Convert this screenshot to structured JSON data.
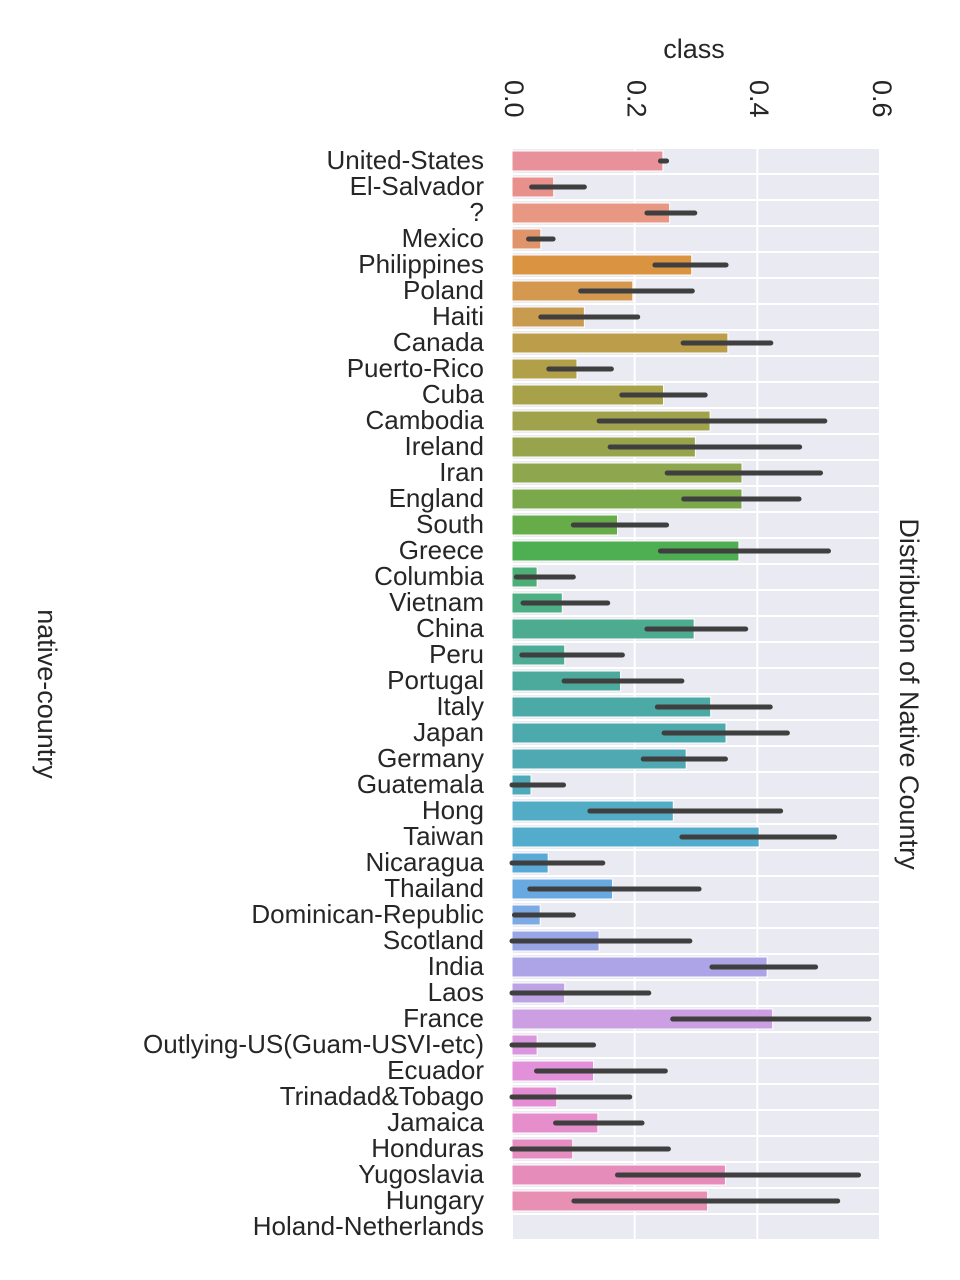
{
  "chart_data": {
    "type": "bar",
    "orientation": "horizontal",
    "title": "Distribution of Native Country",
    "xlabel": "class",
    "ylabel": "native-country",
    "xlim": [
      0,
      0.6
    ],
    "xticks": [
      "0.0",
      "0.2",
      "0.4",
      "0.6"
    ],
    "xtick_values": [
      0,
      0.2,
      0.4,
      0.6
    ],
    "grid": true,
    "x_axis_position": "top",
    "title_position": "right, rotated",
    "background": "#eaeaf2",
    "error_bar_color": "#3f3f3f",
    "categories": [
      "United-States",
      "El-Salvador",
      "?",
      "Mexico",
      "Philippines",
      "Poland",
      "Haiti",
      "Canada",
      "Puerto-Rico",
      "Cuba",
      "Cambodia",
      "Ireland",
      "Iran",
      "England",
      "South",
      "Greece",
      "Columbia",
      "Vietnam",
      "China",
      "Peru",
      "Portugal",
      "Italy",
      "Japan",
      "Germany",
      "Guatemala",
      "Hong",
      "Taiwan",
      "Nicaragua",
      "Thailand",
      "Dominican-Republic",
      "Scotland",
      "India",
      "Laos",
      "France",
      "Outlying-US(Guam-USVI-etc)",
      "Ecuador",
      "Trinadad&Tobago",
      "Jamaica",
      "Honduras",
      "Yugoslavia",
      "Hungary",
      "Holand-Netherlands"
    ],
    "values": [
      0.246,
      0.068,
      0.257,
      0.047,
      0.293,
      0.197,
      0.118,
      0.352,
      0.106,
      0.247,
      0.323,
      0.299,
      0.375,
      0.375,
      0.172,
      0.37,
      0.041,
      0.082,
      0.297,
      0.086,
      0.177,
      0.324,
      0.349,
      0.284,
      0.031,
      0.263,
      0.403,
      0.059,
      0.164,
      0.046,
      0.142,
      0.416,
      0.086,
      0.425,
      0.041,
      0.133,
      0.073,
      0.14,
      0.099,
      0.348,
      0.319,
      0.0
    ],
    "ci_low": [
      0.242,
      0.032,
      0.22,
      0.027,
      0.233,
      0.112,
      0.047,
      0.279,
      0.06,
      0.179,
      0.142,
      0.16,
      0.253,
      0.28,
      0.1,
      0.242,
      0.007,
      0.018,
      0.22,
      0.016,
      0.085,
      0.237,
      0.248,
      0.214,
      0.0,
      0.127,
      0.277,
      0.0,
      0.029,
      0.004,
      0.0,
      0.326,
      0.0,
      0.262,
      0.0,
      0.04,
      0.0,
      0.071,
      0.0,
      0.172,
      0.101,
      0.0
    ],
    "ci_high": [
      0.252,
      0.118,
      0.298,
      0.067,
      0.349,
      0.294,
      0.205,
      0.422,
      0.162,
      0.315,
      0.51,
      0.469,
      0.503,
      0.468,
      0.252,
      0.516,
      0.1,
      0.156,
      0.381,
      0.18,
      0.277,
      0.421,
      0.449,
      0.348,
      0.084,
      0.438,
      0.526,
      0.148,
      0.305,
      0.1,
      0.29,
      0.495,
      0.223,
      0.582,
      0.133,
      0.25,
      0.192,
      0.212,
      0.255,
      0.565,
      0.531,
      0.0
    ],
    "colors": [
      "#e8919a",
      "#e8918c",
      "#e89882",
      "#e0946a",
      "#d99341",
      "#d4984f",
      "#c89b4e",
      "#bc9e4a",
      "#b2a049",
      "#a7a14a",
      "#a0a34b",
      "#98a44c",
      "#8ea64d",
      "#7aa84a",
      "#66ac49",
      "#4eae52",
      "#4eae78",
      "#4eae84",
      "#4dab8f",
      "#4dab96",
      "#4caa9c",
      "#4baaa6",
      "#4caaad",
      "#4ea9b3",
      "#4ea9ba",
      "#52acc6",
      "#54accc",
      "#5aaad8",
      "#67a9e0",
      "#7eaae4",
      "#98a6e6",
      "#aca4e6",
      "#bea3e4",
      "#cc9ee2",
      "#da96de",
      "#e290da",
      "#e48dd2",
      "#e68dcc",
      "#e68dc2",
      "#e68cbb",
      "#e88fb4",
      "#e88fa8"
    ]
  }
}
